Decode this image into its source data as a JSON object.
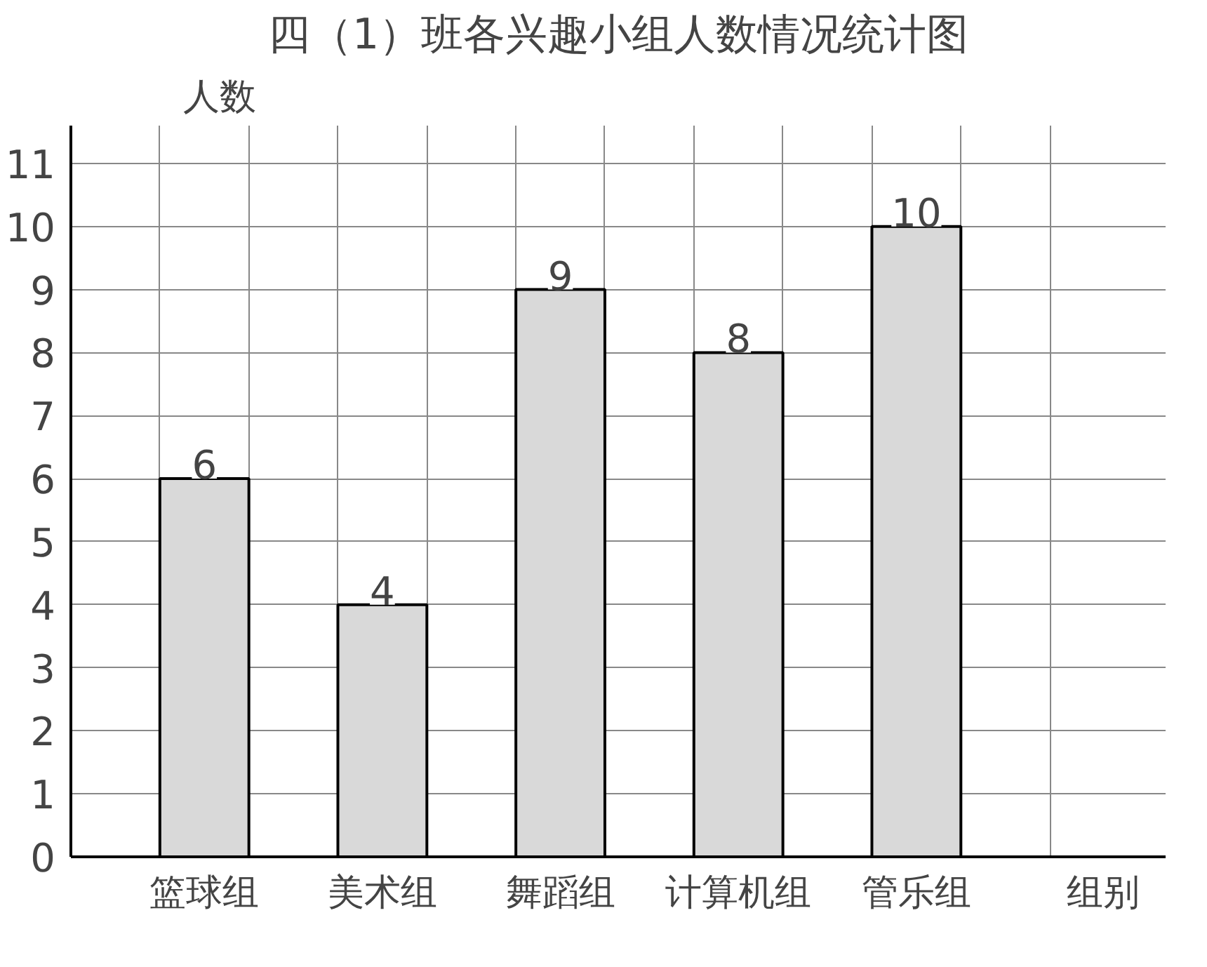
{
  "chart_data": {
    "type": "bar",
    "title": "四（1）班各兴趣小组人数情况统计图",
    "xlabel": "组别",
    "ylabel": "人数",
    "categories": [
      "篮球组",
      "美术组",
      "舞蹈组",
      "计算机组",
      "管乐组"
    ],
    "values": [
      6,
      4,
      9,
      8,
      10
    ],
    "color": "#d9d9d9",
    "ylim": [
      0,
      11.6
    ],
    "yticks": [
      0,
      1,
      2,
      3,
      4,
      5,
      6,
      7,
      8,
      9,
      10,
      11
    ],
    "grid": true,
    "data_labels": true
  }
}
